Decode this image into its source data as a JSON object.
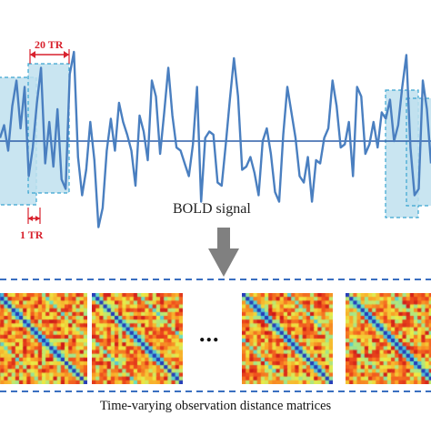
{
  "labels": {
    "window_20": "20 TR",
    "step_1": "1 TR",
    "signal": "BOLD signal",
    "ellipsis": "...",
    "caption": "Time-varying observation distance matrices"
  },
  "colors": {
    "signal": "#4a7fc0",
    "window_fill": "#bfe0ef",
    "window_border": "#3aa5d0",
    "annotation": "#d8212d",
    "divider": "#3a6fc0",
    "arrow": "#808080"
  },
  "signal": [
    0.05,
    0.25,
    -0.15,
    0.55,
    0.95,
    0.2,
    0.85,
    -0.55,
    -0.1,
    0.6,
    1.15,
    -0.35,
    0.3,
    -0.4,
    0.5,
    -0.6,
    -0.75,
    1.05,
    1.4,
    -0.25,
    -0.85,
    -0.45,
    0.3,
    -0.3,
    -1.35,
    -1.05,
    -0.15,
    0.35,
    -0.15,
    0.6,
    0.3,
    0.1,
    -0.15,
    -0.7,
    0.4,
    0.15,
    -0.3,
    0.95,
    0.7,
    -0.2,
    0.45,
    1.15,
    0.4,
    -0.1,
    -0.15,
    -0.35,
    -0.55,
    -0.05,
    0.85,
    -0.95,
    0.05,
    0.15,
    0.1,
    -0.65,
    -0.7,
    -0.05,
    0.65,
    1.3,
    0.7,
    -0.45,
    -0.4,
    -0.25,
    -0.5,
    -0.85,
    0.0,
    0.2,
    -0.2,
    -0.8,
    -0.95,
    0.1,
    0.85,
    0.45,
    0.05,
    -0.55,
    -0.65,
    -0.25,
    -0.95,
    -0.3,
    -0.35,
    0.05,
    0.2,
    0.95,
    0.55,
    -0.1,
    -0.05,
    0.3,
    -0.55,
    0.85,
    0.7,
    -0.2,
    -0.05,
    0.3,
    -0.1,
    0.45,
    0.35,
    0.65,
    0.0,
    0.25,
    0.85,
    1.35,
    -0.1,
    -0.85,
    -0.75,
    0.95,
    0.5,
    -0.35
  ]
}
